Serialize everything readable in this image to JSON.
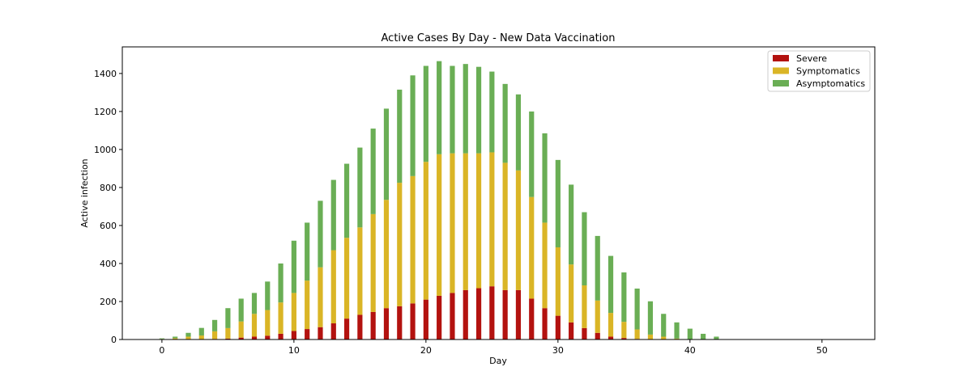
{
  "chart_data": {
    "type": "bar",
    "stacked": true,
    "title": "Active Cases By Day - New Data Vaccination",
    "xlabel": "Day",
    "ylabel": "Active infection",
    "xlim": [
      -3,
      54
    ],
    "ylim": [
      0,
      1540
    ],
    "xticks": [
      0,
      10,
      20,
      30,
      40,
      50
    ],
    "yticks": [
      0,
      200,
      400,
      600,
      800,
      1000,
      1200,
      1400
    ],
    "legend_position": "top-right",
    "x": [
      0,
      1,
      2,
      3,
      4,
      5,
      6,
      7,
      8,
      9,
      10,
      11,
      12,
      13,
      14,
      15,
      16,
      17,
      18,
      19,
      20,
      21,
      22,
      23,
      24,
      25,
      26,
      27,
      28,
      29,
      30,
      31,
      32,
      33,
      34,
      35,
      36,
      37,
      38,
      39,
      40,
      41,
      42,
      43,
      44,
      45,
      46,
      47,
      48,
      49,
      50,
      51,
      52
    ],
    "series": [
      {
        "name": "Severe",
        "color": "#b3120f",
        "values": [
          0,
          0,
          0,
          1,
          3,
          5,
          10,
          15,
          20,
          30,
          45,
          55,
          65,
          85,
          110,
          130,
          145,
          165,
          175,
          190,
          210,
          230,
          245,
          260,
          270,
          280,
          260,
          260,
          215,
          165,
          125,
          90,
          60,
          35,
          15,
          8,
          3,
          1,
          0,
          0,
          0,
          0,
          0,
          0,
          0,
          0,
          0,
          0,
          0,
          0,
          0,
          0,
          0
        ]
      },
      {
        "name": "Symptomatics",
        "color": "#dab526",
        "values": [
          3,
          7,
          15,
          20,
          40,
          55,
          85,
          120,
          135,
          165,
          200,
          255,
          315,
          385,
          425,
          460,
          515,
          570,
          650,
          670,
          725,
          745,
          735,
          720,
          710,
          705,
          670,
          630,
          535,
          450,
          360,
          305,
          225,
          170,
          125,
          85,
          50,
          25,
          15,
          5,
          2,
          0,
          0,
          0,
          0,
          0,
          0,
          0,
          0,
          0,
          0,
          0,
          0
        ]
      },
      {
        "name": "Asymptomatics",
        "color": "#6aae55",
        "values": [
          3,
          8,
          20,
          40,
          60,
          105,
          120,
          110,
          150,
          205,
          275,
          305,
          350,
          370,
          390,
          420,
          450,
          480,
          490,
          530,
          505,
          490,
          460,
          470,
          455,
          425,
          415,
          400,
          450,
          470,
          460,
          420,
          385,
          340,
          300,
          260,
          215,
          175,
          120,
          85,
          55,
          30,
          15,
          0,
          0,
          0,
          0,
          0,
          0,
          0,
          0,
          0,
          0
        ]
      }
    ]
  }
}
